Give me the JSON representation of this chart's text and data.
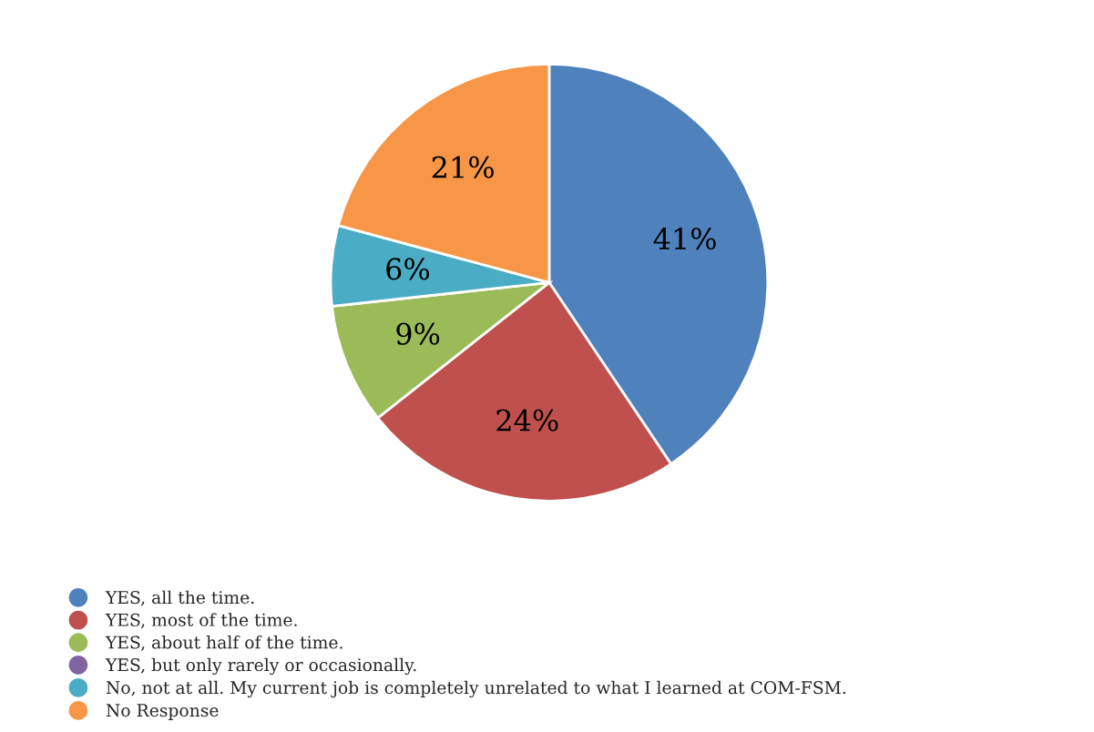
{
  "chart_data": {
    "type": "pie",
    "categories": [
      "YES, all the time.",
      "YES, most of the time.",
      "YES, about half of the time.",
      "YES, but only rarely or occasionally.",
      "No, not at all. My current job is completely unrelated to what I learned at COM-FSM.",
      "No Response"
    ],
    "values": [
      41,
      24,
      9,
      0,
      6,
      21
    ],
    "colors": [
      "#4f81bd",
      "#c0504d",
      "#9bbb59",
      "#8064a2",
      "#4bacc6",
      "#f79646"
    ],
    "value_labels": [
      "41%",
      "24%",
      "9%",
      null,
      "6%",
      "21%"
    ],
    "legend": "bottom left"
  }
}
